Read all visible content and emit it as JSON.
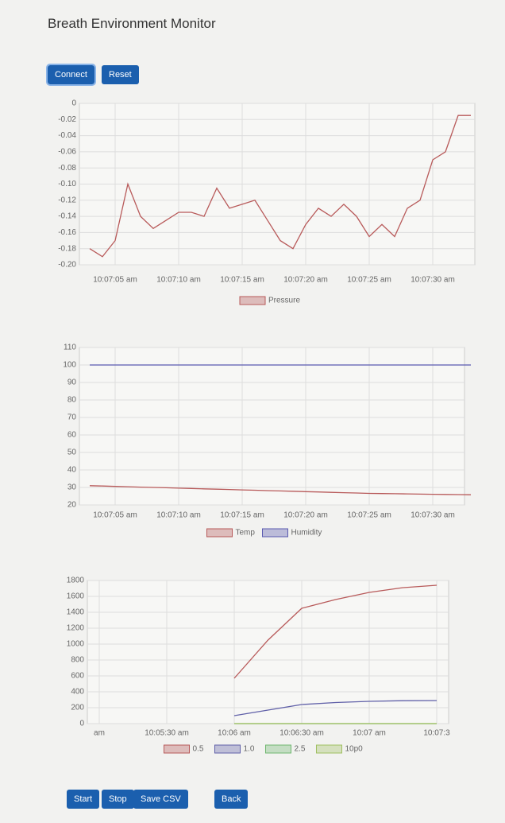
{
  "header": {
    "title": "Breath Environment Monitor"
  },
  "buttons": [
    "Connect",
    "Reset",
    "Start",
    "Stop",
    "Save CSV",
    "Back"
  ],
  "chart_data": [
    {
      "type": "line",
      "grid": true,
      "categories": [
        null,
        null,
        "10:07:05 am",
        null,
        null,
        null,
        null,
        "10:07:10 am",
        null,
        null,
        null,
        null,
        "10:07:15 am",
        null,
        null,
        null,
        null,
        "10:07:20 am",
        null,
        null,
        null,
        null,
        "10:07:25 am",
        null,
        null,
        null,
        null,
        "10:07:30 am",
        null,
        null,
        null
      ],
      "series": [
        {
          "name": "Pressure",
          "color": "#b85a5a",
          "values": [
            -0.18,
            -0.19,
            -0.17,
            -0.1,
            -0.14,
            -0.155,
            -0.145,
            -0.135,
            -0.135,
            -0.14,
            -0.105,
            -0.13,
            -0.125,
            -0.12,
            -0.145,
            -0.17,
            -0.18,
            -0.15,
            -0.13,
            -0.14,
            -0.125,
            -0.14,
            -0.165,
            -0.15,
            -0.165,
            -0.13,
            -0.12,
            -0.07,
            -0.06,
            -0.015,
            -0.015
          ]
        }
      ],
      "ylim": [
        -0.2,
        0
      ],
      "yticks": [
        0,
        -0.02,
        -0.04,
        -0.06,
        -0.08,
        {
          "value": -0.1,
          "label": "-0.10"
        },
        -0.12,
        -0.14,
        -0.16,
        -0.18,
        {
          "value": -0.2,
          "label": "-0.20"
        }
      ]
    },
    {
      "type": "line",
      "grid": true,
      "categories": [
        null,
        null,
        "10:07:05 am",
        null,
        null,
        null,
        null,
        "10:07:10 am",
        null,
        null,
        null,
        null,
        "10:07:15 am",
        null,
        null,
        null,
        null,
        "10:07:20 am",
        null,
        null,
        null,
        null,
        "10:07:25 am",
        null,
        null,
        null,
        null,
        "10:07:30 am",
        null,
        null,
        null
      ],
      "series": [
        {
          "name": "Temp",
          "color": "#b85a5a",
          "values": [
            31,
            30.8,
            30.6,
            30.4,
            30.2,
            30,
            29.8,
            29.6,
            29.4,
            29.2,
            29,
            28.8,
            28.6,
            28.4,
            28.2,
            28,
            27.8,
            27.6,
            27.4,
            27.2,
            27,
            26.8,
            26.6,
            26.5,
            26.4,
            26.3,
            26.2,
            26.1,
            26,
            25.9,
            25.8
          ]
        },
        {
          "name": "Humidity",
          "color": "#5a5ab0",
          "values": [
            100,
            100,
            100,
            100,
            100,
            100,
            100,
            100,
            100,
            100,
            100,
            100,
            100,
            100,
            100,
            100,
            100,
            100,
            100,
            100,
            100,
            100,
            100,
            100,
            100,
            100,
            100,
            100,
            100,
            100,
            100
          ]
        }
      ],
      "ylim": [
        20,
        110
      ],
      "yticks": [
        110,
        100,
        90,
        80,
        70,
        60,
        50,
        40,
        30,
        20
      ]
    },
    {
      "type": "line",
      "grid": true,
      "categories": [
        "am",
        null,
        "10:05:30 am",
        null,
        "10:06 am",
        null,
        "10:06:30 am",
        null,
        "10:07 am",
        null,
        "10:07:3"
      ],
      "series": [
        {
          "name": "0.5",
          "color": "#b85a5a",
          "values": [
            null,
            null,
            null,
            null,
            570,
            1050,
            1450,
            1560,
            1650,
            1710,
            1740
          ]
        },
        {
          "name": "1.0",
          "color": "#6060a8",
          "values": [
            null,
            null,
            null,
            null,
            100,
            170,
            240,
            265,
            280,
            288,
            290
          ]
        },
        {
          "name": "2.5",
          "color": "#70b870",
          "values": [
            null,
            null,
            null,
            null,
            0,
            0,
            0,
            0,
            0,
            0,
            0
          ]
        },
        {
          "name": "10p0",
          "color": "#a0c060",
          "values": [
            null,
            null,
            null,
            null,
            0,
            0,
            0,
            0,
            0,
            0,
            0
          ]
        }
      ],
      "ylim": [
        0,
        1800
      ],
      "yticks": [
        1800,
        1600,
        1400,
        1200,
        1000,
        800,
        600,
        400,
        200,
        0
      ]
    }
  ]
}
